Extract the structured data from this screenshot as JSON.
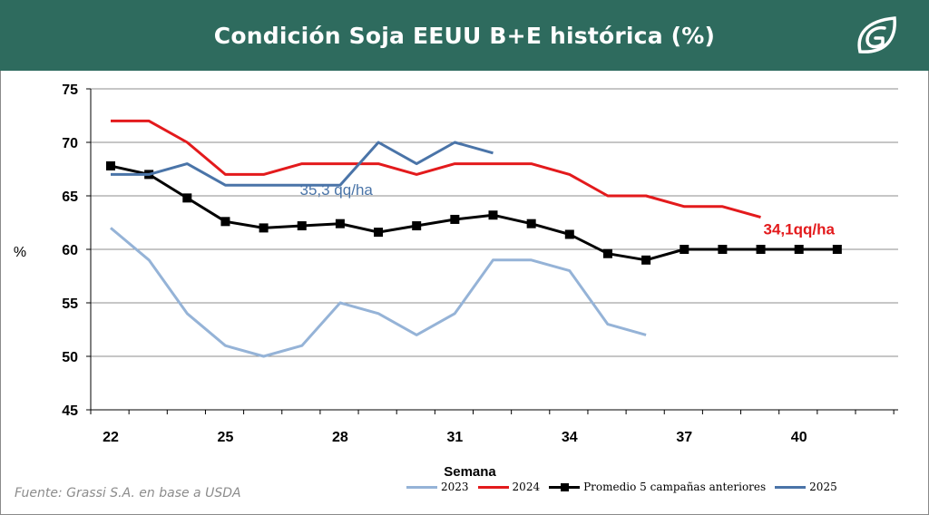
{
  "title": "Condición Soja EEUU B+E histórica (%)",
  "source": "Fuente: Grassi S.A. en base a USDA",
  "logo_icon": "grassi-leaf-logo",
  "colors": {
    "header": "#2e6b5e",
    "s2023": "#95b3d7",
    "s2024": "#e31a1c",
    "avg": "#000000",
    "s2025": "#4a74a8"
  },
  "chart_data": {
    "type": "line",
    "title": "Condición Soja EEUU B+E histórica (%)",
    "xlabel": "Semana",
    "ylabel": "%",
    "xlim": [
      22,
      41
    ],
    "ylim": [
      45,
      75
    ],
    "xticks": [
      22,
      25,
      28,
      31,
      34,
      37,
      40
    ],
    "yticks": [
      45,
      50,
      55,
      60,
      65,
      70,
      75
    ],
    "grid": true,
    "legend": "bottom",
    "series": [
      {
        "name": "2023",
        "key": "s2023",
        "x": [
          22,
          23,
          24,
          25,
          26,
          27,
          28,
          29,
          30,
          31,
          32,
          33,
          34,
          35,
          36
        ],
        "values": [
          62,
          59,
          54,
          51,
          50,
          51,
          55,
          54,
          52,
          54,
          59,
          59,
          58,
          53,
          52
        ]
      },
      {
        "name": "2024",
        "key": "s2024",
        "x": [
          22,
          23,
          24,
          25,
          26,
          27,
          28,
          29,
          30,
          31,
          32,
          33,
          34,
          35,
          36,
          37,
          38,
          39
        ],
        "values": [
          72,
          72,
          70,
          67,
          67,
          68,
          68,
          68,
          67,
          68,
          68,
          68,
          67,
          65,
          65,
          64,
          64,
          63
        ]
      },
      {
        "name": "Promedio 5 campañas anteriores",
        "key": "avg",
        "marker": "square",
        "x": [
          22,
          23,
          24,
          25,
          26,
          27,
          28,
          29,
          30,
          31,
          32,
          33,
          34,
          35,
          36,
          37,
          38,
          39,
          40,
          41
        ],
        "values": [
          67.8,
          67,
          64.8,
          62.6,
          62,
          62.2,
          62.4,
          61.6,
          62.2,
          62.8,
          63.2,
          62.4,
          61.4,
          59.6,
          59,
          60,
          60,
          60,
          60,
          60
        ]
      },
      {
        "name": "2025",
        "key": "s2025",
        "x": [
          22,
          23,
          24,
          25,
          26,
          27,
          28,
          29,
          30,
          31,
          32
        ],
        "values": [
          67,
          67,
          68,
          66,
          66,
          66,
          66,
          70,
          68,
          70,
          69
        ]
      }
    ],
    "annotations": [
      {
        "text": "35,3 qq/ha",
        "x": 27.9,
        "y": 65.1,
        "color_key": "s2025"
      },
      {
        "text": "34,1qq/ha",
        "x": 40,
        "y": 61.4,
        "color_key": "s2024"
      }
    ]
  }
}
